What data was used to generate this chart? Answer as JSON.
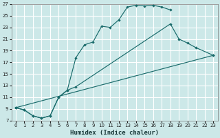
{
  "xlabel": "Humidex (Indice chaleur)",
  "bg_color": "#cce8e8",
  "grid_color": "#b8d8d8",
  "line_color": "#1a6b6b",
  "xlim": [
    -0.5,
    23.5
  ],
  "ylim": [
    7,
    27
  ],
  "xticks": [
    0,
    1,
    2,
    3,
    4,
    5,
    6,
    7,
    8,
    9,
    10,
    11,
    12,
    13,
    14,
    15,
    16,
    17,
    18,
    19,
    20,
    21,
    22,
    23
  ],
  "yticks": [
    7,
    9,
    11,
    13,
    15,
    17,
    19,
    21,
    23,
    25,
    27
  ],
  "curve1_x": [
    0,
    1,
    2,
    3,
    4,
    5,
    6,
    7,
    8,
    9,
    10,
    11,
    12,
    13,
    14,
    15,
    16,
    17,
    18
  ],
  "curve1_y": [
    9.2,
    8.8,
    7.8,
    7.4,
    7.8,
    11.0,
    12.2,
    17.8,
    20.0,
    20.5,
    23.2,
    23.0,
    24.3,
    26.5,
    26.8,
    26.7,
    26.8,
    26.5,
    26.0
  ],
  "curve2_x": [
    0,
    1,
    2,
    3,
    4,
    5,
    6,
    7,
    18,
    19,
    20,
    21,
    23
  ],
  "curve2_y": [
    9.2,
    8.8,
    7.8,
    7.4,
    7.8,
    11.0,
    12.2,
    12.8,
    23.6,
    21.0,
    20.3,
    19.5,
    18.2
  ],
  "curve3_x": [
    0,
    23
  ],
  "curve3_y": [
    9.2,
    18.2
  ]
}
